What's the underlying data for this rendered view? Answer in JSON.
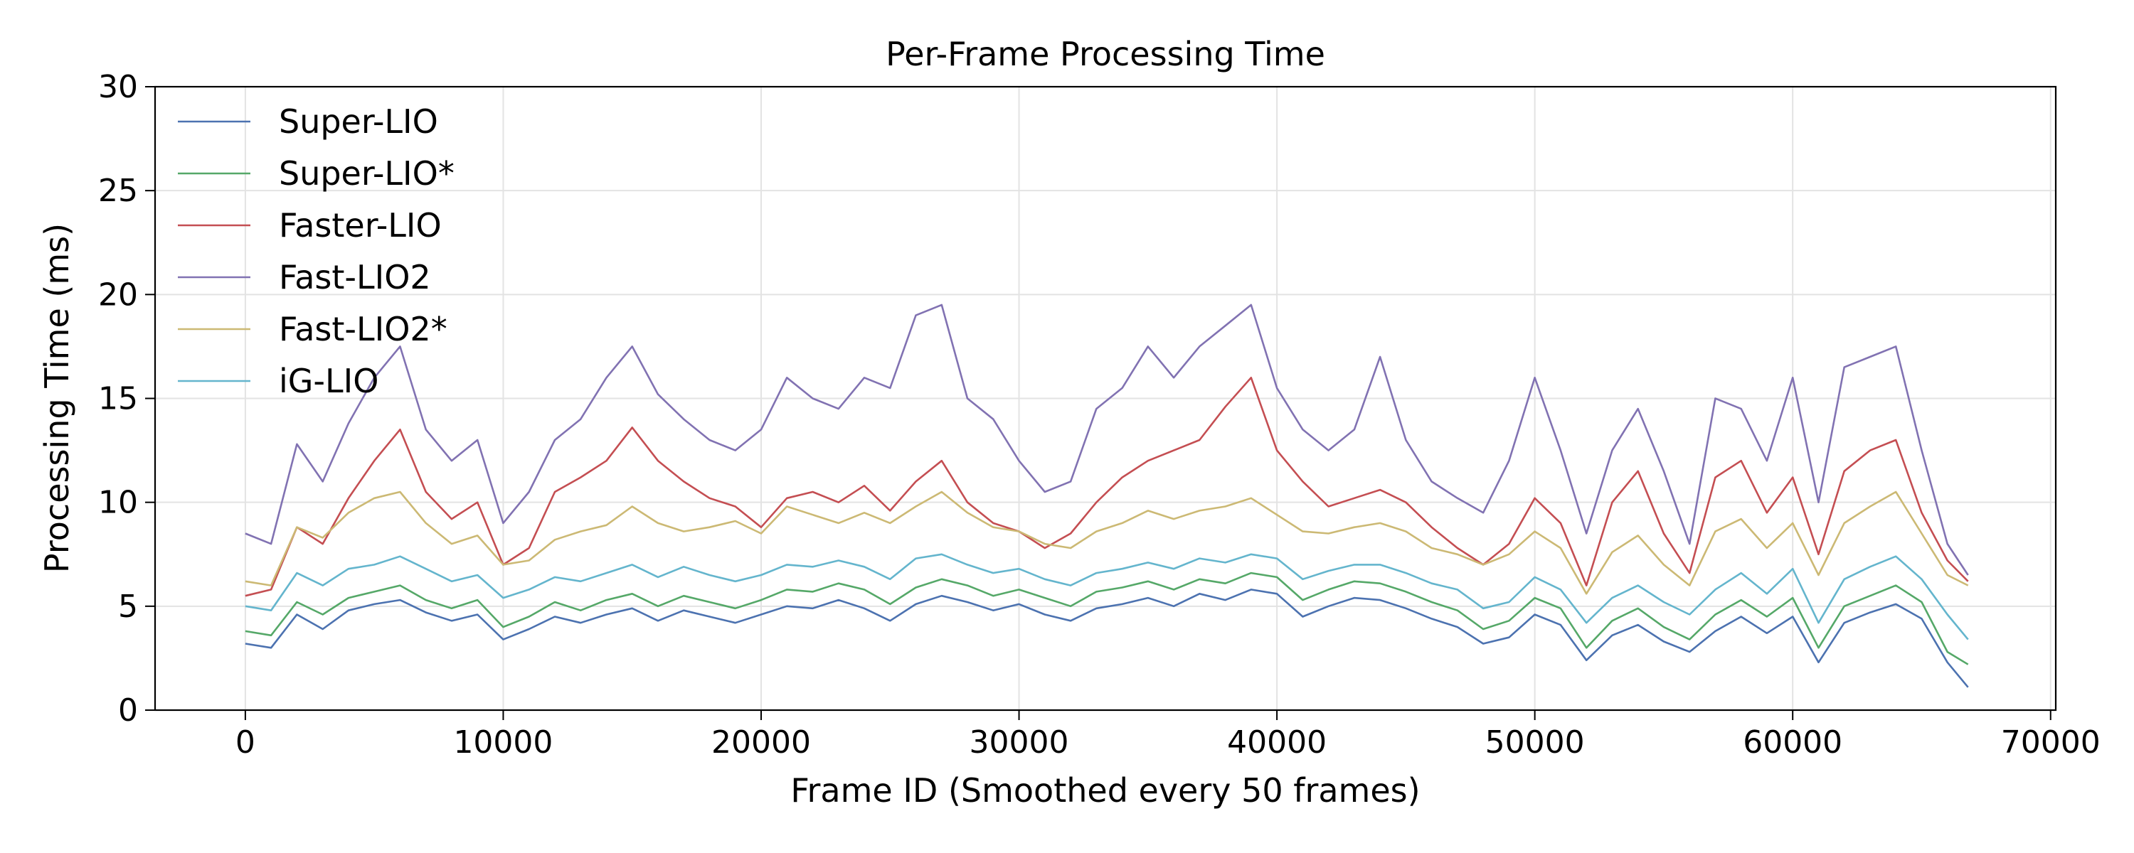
{
  "chart_data": {
    "type": "line",
    "title": "Per-Frame Processing Time",
    "xlabel": "Frame ID (Smoothed every 50 frames)",
    "ylabel": "Processing Time (ms)",
    "xlim": [
      -3500,
      70200
    ],
    "ylim": [
      0,
      30
    ],
    "xticks": [
      0,
      10000,
      20000,
      30000,
      40000,
      50000,
      60000,
      70000
    ],
    "xtick_labels": [
      "0",
      "10000",
      "20000",
      "30000",
      "40000",
      "50000",
      "60000",
      "70000"
    ],
    "yticks": [
      0,
      5,
      10,
      15,
      20,
      25,
      30
    ],
    "ytick_labels": [
      "0",
      "5",
      "10",
      "15",
      "20",
      "25",
      "30"
    ],
    "grid": true,
    "legend_position": "top-left",
    "x": [
      0,
      1000,
      2000,
      3000,
      4000,
      5000,
      6000,
      7000,
      8000,
      9000,
      10000,
      11000,
      12000,
      13000,
      14000,
      15000,
      16000,
      17000,
      18000,
      19000,
      20000,
      21000,
      22000,
      23000,
      24000,
      25000,
      26000,
      27000,
      28000,
      29000,
      30000,
      31000,
      32000,
      33000,
      34000,
      35000,
      36000,
      37000,
      38000,
      39000,
      40000,
      41000,
      42000,
      43000,
      44000,
      45000,
      46000,
      47000,
      48000,
      49000,
      50000,
      51000,
      52000,
      53000,
      54000,
      55000,
      56000,
      57000,
      58000,
      59000,
      60000,
      61000,
      62000,
      63000,
      64000,
      65000,
      66000,
      66800
    ],
    "series": [
      {
        "name": "Super-LIO",
        "color": "#4c72b0",
        "values": [
          3.2,
          3.0,
          4.6,
          3.9,
          4.8,
          5.1,
          5.3,
          4.7,
          4.3,
          4.6,
          3.4,
          3.9,
          4.5,
          4.2,
          4.6,
          4.9,
          4.3,
          4.8,
          4.5,
          4.2,
          4.6,
          5.0,
          4.9,
          5.3,
          4.9,
          4.3,
          5.1,
          5.5,
          5.2,
          4.8,
          5.1,
          4.6,
          4.3,
          4.9,
          5.1,
          5.4,
          5.0,
          5.6,
          5.3,
          5.8,
          5.6,
          4.5,
          5.0,
          5.4,
          5.3,
          4.9,
          4.4,
          4.0,
          3.2,
          3.5,
          4.6,
          4.1,
          2.4,
          3.6,
          4.1,
          3.3,
          2.8,
          3.8,
          4.5,
          3.7,
          4.5,
          2.3,
          4.2,
          4.7,
          5.1,
          4.4,
          2.3,
          1.1
        ]
      },
      {
        "name": "Super-LIO*",
        "color": "#55a868",
        "values": [
          3.8,
          3.6,
          5.2,
          4.6,
          5.4,
          5.7,
          6.0,
          5.3,
          4.9,
          5.3,
          4.0,
          4.5,
          5.2,
          4.8,
          5.3,
          5.6,
          5.0,
          5.5,
          5.2,
          4.9,
          5.3,
          5.8,
          5.7,
          6.1,
          5.8,
          5.1,
          5.9,
          6.3,
          6.0,
          5.5,
          5.8,
          5.4,
          5.0,
          5.7,
          5.9,
          6.2,
          5.8,
          6.3,
          6.1,
          6.6,
          6.4,
          5.3,
          5.8,
          6.2,
          6.1,
          5.7,
          5.2,
          4.8,
          3.9,
          4.3,
          5.4,
          4.9,
          3.0,
          4.3,
          4.9,
          4.0,
          3.4,
          4.6,
          5.3,
          4.5,
          5.4,
          3.0,
          5.0,
          5.5,
          6.0,
          5.2,
          2.8,
          2.2
        ]
      },
      {
        "name": "Faster-LIO",
        "color": "#c44e52",
        "values": [
          5.5,
          5.8,
          8.8,
          8.0,
          10.2,
          12.0,
          13.5,
          10.5,
          9.2,
          10.0,
          7.0,
          7.8,
          10.5,
          11.2,
          12.0,
          13.6,
          12.0,
          11.0,
          10.2,
          9.8,
          8.8,
          10.2,
          10.5,
          10.0,
          10.8,
          9.6,
          11.0,
          12.0,
          10.0,
          9.0,
          8.6,
          7.8,
          8.5,
          10.0,
          11.2,
          12.0,
          12.5,
          13.0,
          14.6,
          16.0,
          12.5,
          11.0,
          9.8,
          10.2,
          10.6,
          10.0,
          8.8,
          7.8,
          7.0,
          8.0,
          10.2,
          9.0,
          6.0,
          10.0,
          11.5,
          8.5,
          6.6,
          11.2,
          12.0,
          9.5,
          11.2,
          7.5,
          11.5,
          12.5,
          13.0,
          9.5,
          7.2,
          6.2
        ]
      },
      {
        "name": "Fast-LIO2",
        "color": "#8172b2",
        "values": [
          8.5,
          8.0,
          12.8,
          11.0,
          13.8,
          16.0,
          17.5,
          13.5,
          12.0,
          13.0,
          9.0,
          10.5,
          13.0,
          14.0,
          16.0,
          17.5,
          15.2,
          14.0,
          13.0,
          12.5,
          13.5,
          16.0,
          15.0,
          14.5,
          16.0,
          15.5,
          19.0,
          19.5,
          15.0,
          14.0,
          12.0,
          10.5,
          11.0,
          14.5,
          15.5,
          17.5,
          16.0,
          17.5,
          18.5,
          19.5,
          15.5,
          13.5,
          12.5,
          13.5,
          17.0,
          13.0,
          11.0,
          10.2,
          9.5,
          12.0,
          16.0,
          12.5,
          8.5,
          12.5,
          14.5,
          11.5,
          8.0,
          15.0,
          14.5,
          12.0,
          16.0,
          10.0,
          16.5,
          17.0,
          17.5,
          12.5,
          8.0,
          6.5
        ]
      },
      {
        "name": "Fast-LIO2*",
        "color": "#ccb974",
        "values": [
          6.2,
          6.0,
          8.8,
          8.3,
          9.5,
          10.2,
          10.5,
          9.0,
          8.0,
          8.4,
          7.0,
          7.2,
          8.2,
          8.6,
          8.9,
          9.8,
          9.0,
          8.6,
          8.8,
          9.1,
          8.5,
          9.8,
          9.4,
          9.0,
          9.5,
          9.0,
          9.8,
          10.5,
          9.5,
          8.8,
          8.6,
          8.0,
          7.8,
          8.6,
          9.0,
          9.6,
          9.2,
          9.6,
          9.8,
          10.2,
          9.4,
          8.6,
          8.5,
          8.8,
          9.0,
          8.6,
          7.8,
          7.5,
          7.0,
          7.5,
          8.6,
          7.8,
          5.6,
          7.6,
          8.4,
          7.0,
          6.0,
          8.6,
          9.2,
          7.8,
          9.0,
          6.5,
          9.0,
          9.8,
          10.5,
          8.5,
          6.5,
          6.0
        ]
      },
      {
        "name": "iG-LIO",
        "color": "#64b5cd",
        "values": [
          5.0,
          4.8,
          6.6,
          6.0,
          6.8,
          7.0,
          7.4,
          6.8,
          6.2,
          6.5,
          5.4,
          5.8,
          6.4,
          6.2,
          6.6,
          7.0,
          6.4,
          6.9,
          6.5,
          6.2,
          6.5,
          7.0,
          6.9,
          7.2,
          6.9,
          6.3,
          7.3,
          7.5,
          7.0,
          6.6,
          6.8,
          6.3,
          6.0,
          6.6,
          6.8,
          7.1,
          6.8,
          7.3,
          7.1,
          7.5,
          7.3,
          6.3,
          6.7,
          7.0,
          7.0,
          6.6,
          6.1,
          5.8,
          4.9,
          5.2,
          6.4,
          5.8,
          4.2,
          5.4,
          6.0,
          5.2,
          4.6,
          5.8,
          6.6,
          5.6,
          6.8,
          4.2,
          6.3,
          6.9,
          7.4,
          6.3,
          4.6,
          3.4
        ]
      }
    ]
  }
}
